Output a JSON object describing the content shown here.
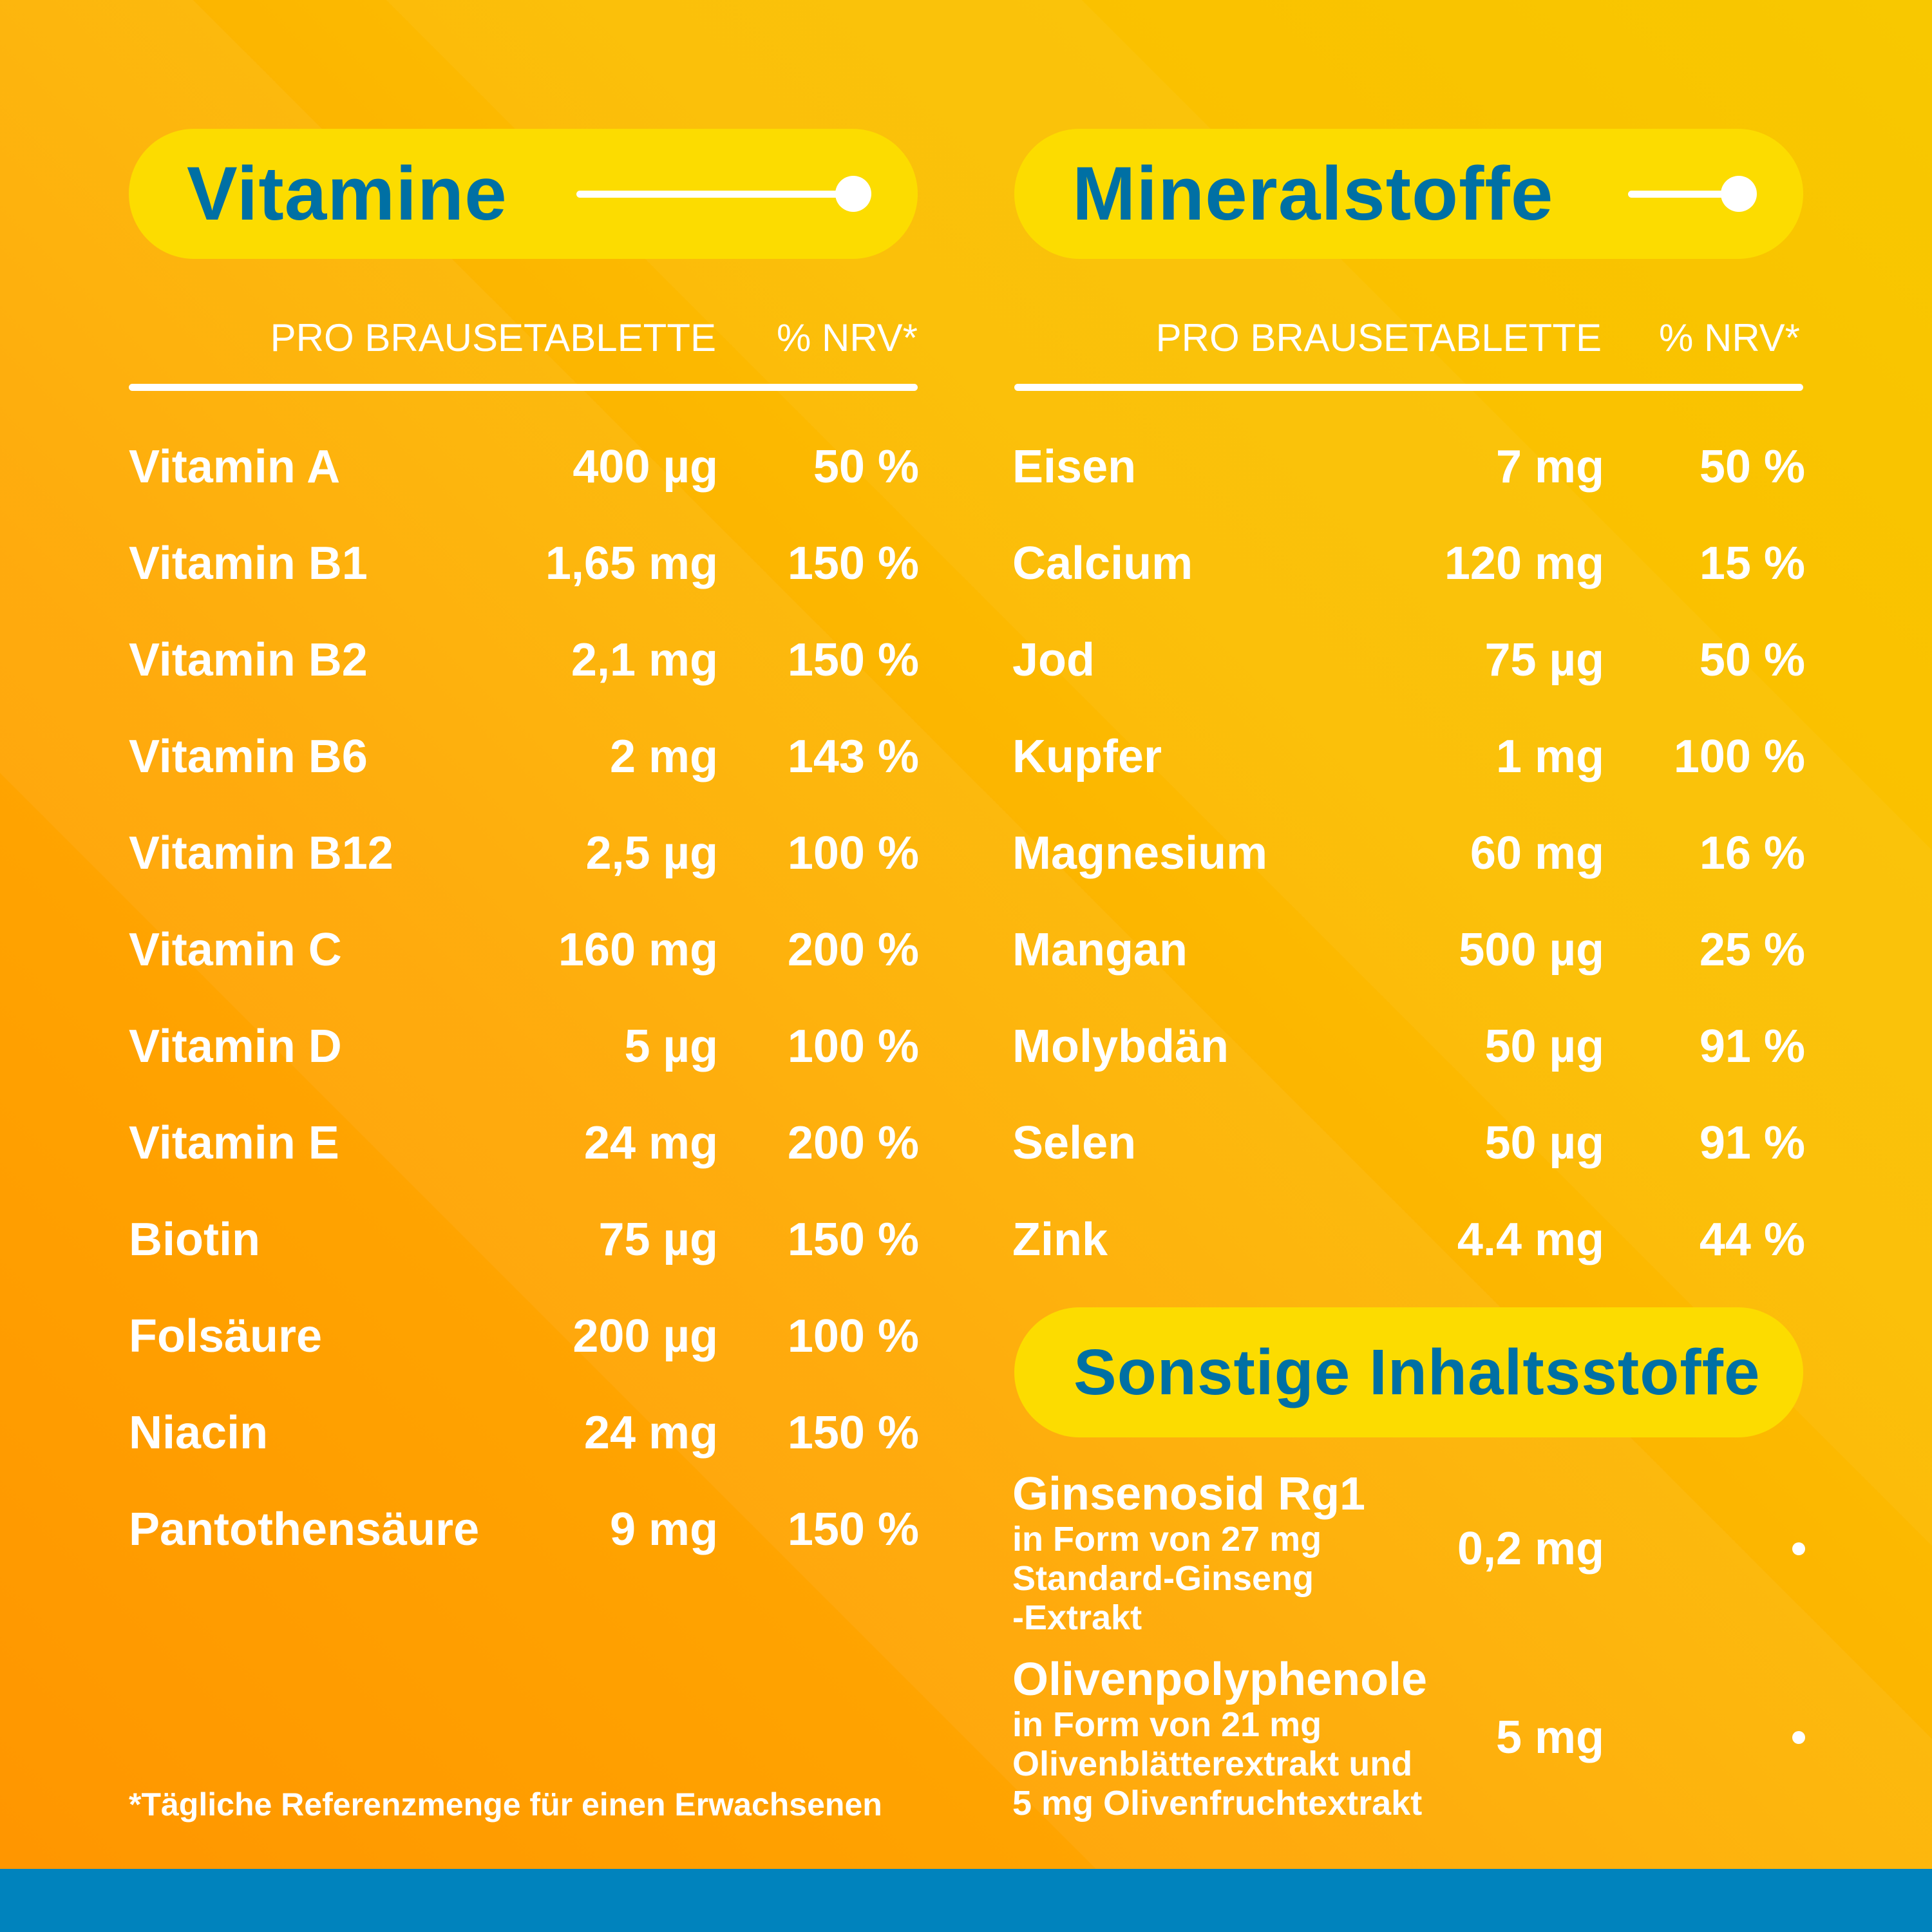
{
  "vitamins": {
    "title": "Vitamine",
    "col_amount": "PRO BRAUSETABLETTE",
    "col_nrv": "% NRV*",
    "rows": [
      {
        "name": "Vitamin A",
        "amount": "400 µg",
        "nrv": "50 %"
      },
      {
        "name": "Vitamin B1",
        "amount": "1,65 mg",
        "nrv": "150 %"
      },
      {
        "name": "Vitamin B2",
        "amount": "2,1 mg",
        "nrv": "150 %"
      },
      {
        "name": "Vitamin B6",
        "amount": "2 mg",
        "nrv": "143 %"
      },
      {
        "name": "Vitamin B12",
        "amount": "2,5 µg",
        "nrv": "100 %"
      },
      {
        "name": "Vitamin C",
        "amount": "160 mg",
        "nrv": "200 %"
      },
      {
        "name": "Vitamin D",
        "amount": "5 µg",
        "nrv": "100 %"
      },
      {
        "name": "Vitamin E",
        "amount": "24 mg",
        "nrv": "200 %"
      },
      {
        "name": "Biotin",
        "amount": "75 µg",
        "nrv": "150 %"
      },
      {
        "name": "Folsäure",
        "amount": "200 µg",
        "nrv": "100 %"
      },
      {
        "name": "Niacin",
        "amount": "24 mg",
        "nrv": "150 %"
      },
      {
        "name": "Pantothensäure",
        "amount": "9 mg",
        "nrv": "150 %"
      }
    ]
  },
  "minerals": {
    "title": "Mineralstoffe",
    "col_amount": "PRO BRAUSETABLETTE",
    "col_nrv": "% NRV*",
    "rows": [
      {
        "name": "Eisen",
        "amount": "7 mg",
        "nrv": "50 %"
      },
      {
        "name": "Calcium",
        "amount": "120 mg",
        "nrv": "15 %"
      },
      {
        "name": "Jod",
        "amount": "75 µg",
        "nrv": "50 %"
      },
      {
        "name": "Kupfer",
        "amount": "1 mg",
        "nrv": "100 %"
      },
      {
        "name": "Magnesium",
        "amount": "60 mg",
        "nrv": "16 %"
      },
      {
        "name": "Mangan",
        "amount": "500 µg",
        "nrv": "25 %"
      },
      {
        "name": "Molybdän",
        "amount": "50 µg",
        "nrv": "91 %"
      },
      {
        "name": "Selen",
        "amount": "50 µg",
        "nrv": "91 %"
      },
      {
        "name": "Zink",
        "amount": "4.4 mg",
        "nrv": "44 %"
      }
    ]
  },
  "other": {
    "title": "Sonstige Inhaltsstoffe",
    "items": [
      {
        "name": "Ginsenosid Rg1",
        "detail": [
          "in Form von 27 mg",
          "Standard-Ginseng",
          "-Extrakt"
        ],
        "amount": "0,2 mg"
      },
      {
        "name": "Olivenpolyphenole",
        "detail": [
          "in Form von 21 mg",
          "Olivenblätterextrakt und",
          "5 mg Olivenfruchtextrakt"
        ],
        "amount": "5 mg"
      }
    ]
  },
  "footnote": "*Tägliche Referenzmenge für einen Erwachsenen",
  "colors": {
    "pill": "#fcdc00",
    "title": "#0070a4",
    "bar": "#0083bd"
  }
}
